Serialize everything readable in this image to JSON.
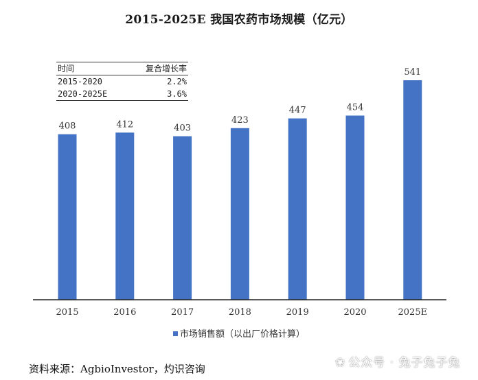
{
  "chart_data": {
    "type": "bar",
    "title": "2015-2025E 我国农药市场规模（亿元）",
    "categories": [
      "2015",
      "2016",
      "2017",
      "2018",
      "2019",
      "2020",
      "2025E"
    ],
    "series": [
      {
        "name": "市场销售额（以出厂价格计算）",
        "values": [
          408,
          412,
          403,
          423,
          447,
          454,
          541
        ]
      }
    ],
    "data_labels": [
      "408",
      "412",
      "403",
      "423",
      "447",
      "454",
      "541"
    ],
    "ylim": [
      0,
      600
    ],
    "xlabel": "",
    "ylabel": "",
    "grid": false,
    "legend": "bottom-center",
    "color": "#4472c4"
  },
  "cagr_table": {
    "headers": [
      "时间",
      "复合增长率"
    ],
    "rows": [
      [
        "2015-2020",
        "2.2%"
      ],
      [
        "2020-2025E",
        "3.6%"
      ]
    ]
  },
  "source_note": "资料来源：AgbioInvestor，灼识咨询",
  "watermark": {
    "icon": "wechat-icon",
    "icon_glyph": "❀",
    "text": "公众号 · 兔子兔子兔"
  }
}
